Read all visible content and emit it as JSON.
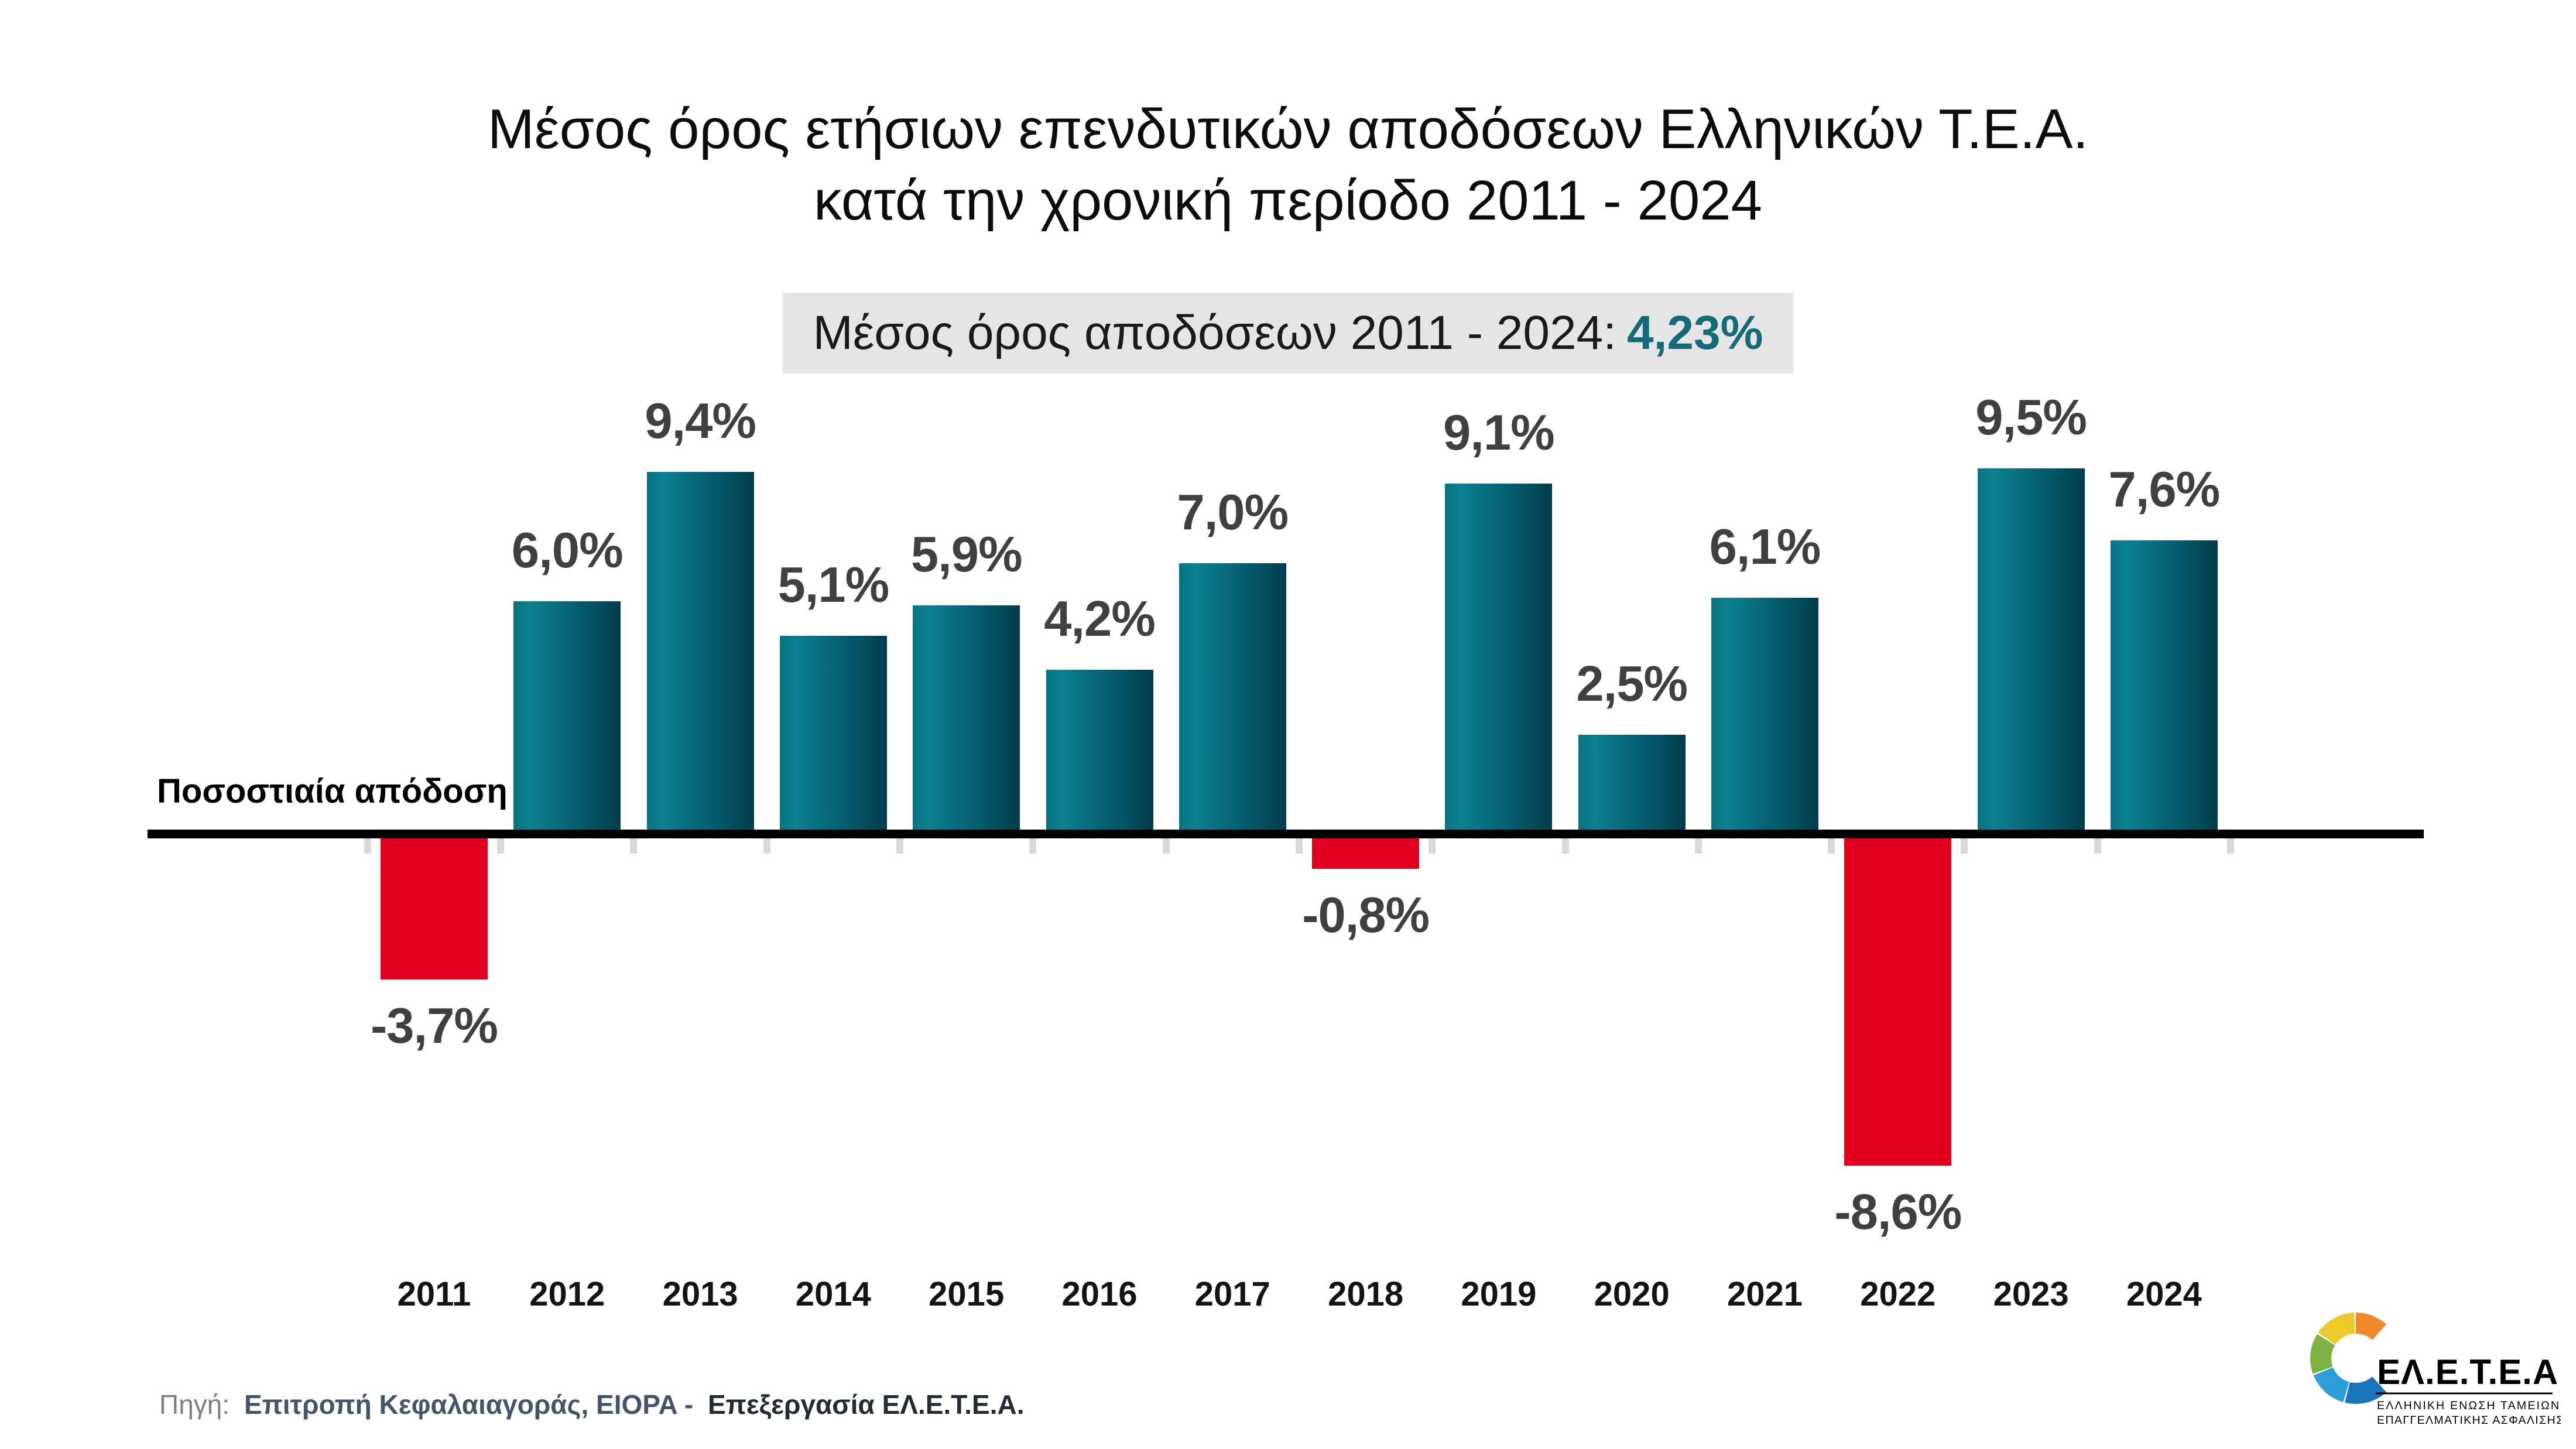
{
  "title": {
    "line1": "Μέσος όρος ετήσιων επενδυτικών αποδόσεων Ελληνικών Τ.Ε.Α.",
    "line2": "κατά την χρονική περίοδο 2011 - 2024"
  },
  "subtitle": {
    "label": "Μέσος όρος αποδόσεων 2011 - 2024:",
    "value": "4,23%",
    "value_color": "#136b7a",
    "box_bg": "#e5e5e5"
  },
  "chart_data": {
    "type": "bar",
    "title": "Μέσος όρος ετήσιων επενδυτικών αποδόσεων Ελληνικών Τ.Ε.Α. κατά την χρονική περίοδο 2011 - 2024",
    "categories": [
      "2011",
      "2012",
      "2013",
      "2014",
      "2015",
      "2016",
      "2017",
      "2018",
      "2019",
      "2020",
      "2021",
      "2022",
      "2023",
      "2024"
    ],
    "values": [
      -3.7,
      6.0,
      9.4,
      5.1,
      5.9,
      4.2,
      7.0,
      -0.8,
      9.1,
      2.5,
      6.1,
      -8.6,
      9.5,
      7.6
    ],
    "labels": [
      "-3,7%",
      "6,0%",
      "9,4%",
      "5,1%",
      "5,9%",
      "4,2%",
      "7,0%",
      "-0,8%",
      "9,1%",
      "2,5%",
      "6,1%",
      "-8,6%",
      "9,5%",
      "7,6%"
    ],
    "xlabel": "",
    "ylabel": "Ποσοστιαία απόδοση",
    "ylim": [
      -10,
      10
    ],
    "grid": false,
    "legend": "none",
    "positive_gradient": [
      "#087381",
      "#0b8191",
      "#045769",
      "#023d4a"
    ],
    "negative_color": "#e2001f",
    "axis_color": "#000000",
    "tick_color": "#d9d9d9",
    "value_label_color": "#404040"
  },
  "axis_label": "Ποσοστιαία απόδοση",
  "source": {
    "prefix": "Πηγή:",
    "bold_blue": "Επιτροπή Κεφαλαιαγοράς, EIOPA -",
    "bold_dark": "Επεξεργασία ΕΛ.Ε.Τ.Ε.Α."
  },
  "logo": {
    "name": "ΕΛ.Ε.Τ.Ε.Α.",
    "caption_line1": "ΕΛΛΗΝΙΚΗ ΕΝΩΣΗ ΤΑΜΕΙΩΝ",
    "caption_line2": "ΕΠΑΓΓΕΛΜΑΤΙΚΗΣ ΑΣΦΑΛΙΣΗΣ",
    "ring_colors": [
      "#1b75bb",
      "#2d9fd8",
      "#7cb342",
      "#eecb2d",
      "#f0892b"
    ],
    "text_color": "#000000"
  }
}
